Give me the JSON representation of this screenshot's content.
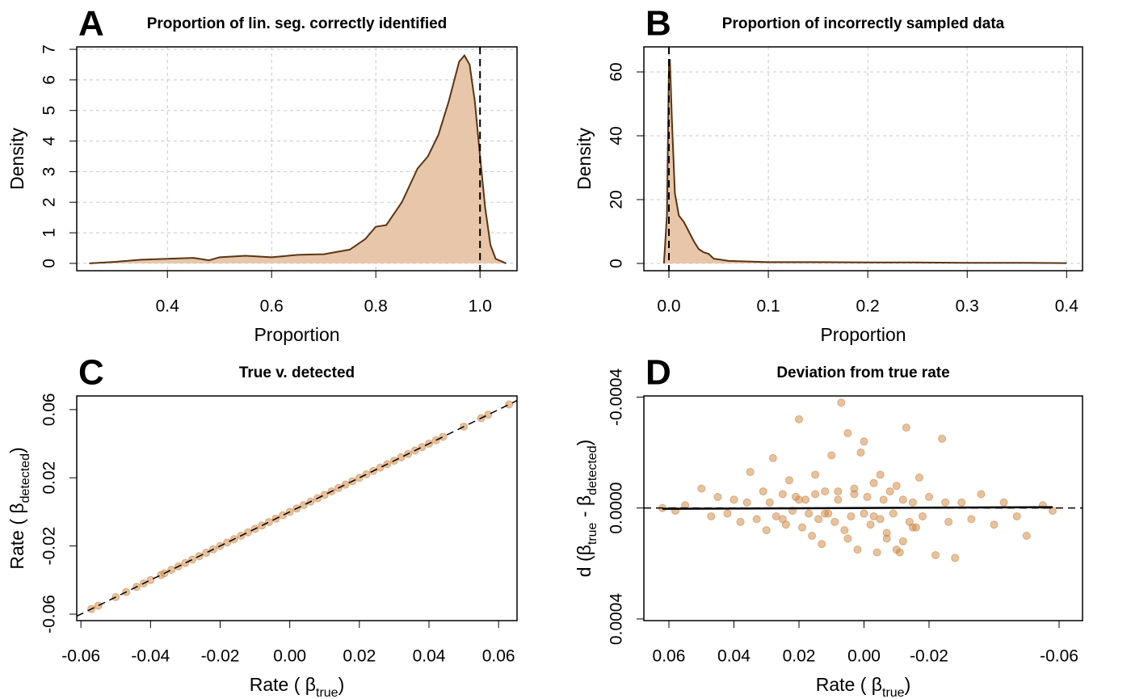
{
  "chart_data": [
    {
      "type": "area",
      "letter": "A",
      "title": "Proportion of lin. seg. correctly identified",
      "xlabel": [
        "Proportion"
      ],
      "ylabel": [
        "Density"
      ],
      "x": [
        0.25,
        0.3,
        0.35,
        0.4,
        0.45,
        0.48,
        0.5,
        0.55,
        0.6,
        0.65,
        0.7,
        0.75,
        0.78,
        0.8,
        0.82,
        0.85,
        0.88,
        0.9,
        0.92,
        0.94,
        0.96,
        0.97,
        0.98,
        0.99,
        1.0,
        1.01,
        1.02,
        1.03,
        1.05
      ],
      "y": [
        0,
        0.05,
        0.12,
        0.15,
        0.18,
        0.1,
        0.2,
        0.25,
        0.2,
        0.28,
        0.3,
        0.45,
        0.8,
        1.2,
        1.25,
        2.0,
        3.1,
        3.5,
        4.2,
        5.3,
        6.6,
        6.8,
        6.5,
        5.3,
        3.5,
        1.8,
        0.6,
        0.15,
        0
      ],
      "vline": 1.0,
      "fill": "#e8c6aa",
      "color": "#5a3413",
      "xlim": [
        0.226,
        1.071
      ],
      "ylim": [
        -0.24,
        7.08
      ],
      "xticks": [
        0.4,
        0.6,
        0.8,
        {
          "value": 1,
          "label": "1.0"
        }
      ],
      "yticks": [
        0,
        1,
        2,
        3,
        4,
        5,
        6,
        7
      ],
      "grid": true
    },
    {
      "type": "area",
      "letter": "B",
      "title": "Proportion of incorrectly sampled data",
      "xlabel": [
        "Proportion"
      ],
      "ylabel": [
        "Density"
      ],
      "x": [
        -0.005,
        -0.002,
        0,
        0.001,
        0.003,
        0.006,
        0.01,
        0.015,
        0.02,
        0.025,
        0.03,
        0.035,
        0.04,
        0.045,
        0.06,
        0.08,
        0.1,
        0.15,
        0.2,
        0.25,
        0.3,
        0.35,
        0.4
      ],
      "y": [
        0,
        15,
        62,
        64,
        45,
        22,
        15,
        13,
        10,
        7,
        4.5,
        3.5,
        3,
        1.5,
        0.8,
        0.6,
        0.4,
        0.4,
        0.3,
        0.3,
        0.2,
        0.2,
        0.1
      ],
      "vline": 0,
      "fill": "#e8c6aa",
      "color": "#5a3413",
      "xlim": [
        -0.0252,
        0.416
      ],
      "ylim": [
        -2.28,
        67.85
      ],
      "xticks": [
        {
          "value": 0,
          "label": "0.0"
        },
        0.1,
        0.2,
        0.3,
        0.4
      ],
      "yticks": [
        0,
        20,
        40,
        60
      ],
      "grid": true
    },
    {
      "type": "scatter",
      "letter": "C",
      "title": "True v. detected",
      "xlabel": [
        "Rate ( β",
        "true",
        ")"
      ],
      "ylabel": [
        "Rate ( β",
        "detected",
        ")"
      ],
      "x": [
        -0.057,
        -0.055,
        -0.05,
        -0.047,
        -0.044,
        -0.042,
        -0.04,
        -0.037,
        -0.036,
        -0.034,
        -0.032,
        -0.03,
        -0.028,
        -0.026,
        -0.024,
        -0.022,
        -0.02,
        -0.018,
        -0.016,
        -0.014,
        -0.012,
        -0.01,
        -0.008,
        -0.006,
        -0.004,
        -0.002,
        0,
        0.002,
        0.004,
        0.006,
        0.008,
        0.01,
        0.012,
        0.014,
        0.016,
        0.018,
        0.02,
        0.022,
        0.024,
        0.026,
        0.028,
        0.03,
        0.032,
        0.034,
        0.036,
        0.038,
        0.04,
        0.042,
        0.044,
        0.05,
        0.055,
        0.057,
        0.063
      ],
      "y": [
        -0.057,
        -0.055,
        -0.05,
        -0.047,
        -0.044,
        -0.042,
        -0.04,
        -0.037,
        -0.036,
        -0.034,
        -0.032,
        -0.03,
        -0.028,
        -0.026,
        -0.024,
        -0.022,
        -0.02,
        -0.018,
        -0.016,
        -0.014,
        -0.012,
        -0.01,
        -0.008,
        -0.006,
        -0.004,
        -0.002,
        0,
        0.002,
        0.004,
        0.006,
        0.008,
        0.01,
        0.012,
        0.014,
        0.016,
        0.018,
        0.02,
        0.022,
        0.024,
        0.026,
        0.028,
        0.03,
        0.032,
        0.034,
        0.036,
        0.038,
        0.04,
        0.042,
        0.044,
        0.05,
        0.055,
        0.057,
        0.063
      ],
      "identity_line": true,
      "color": "#cd853f",
      "xlim": [
        -0.0612,
        0.0653
      ],
      "ylim": [
        -0.0638,
        0.068
      ],
      "xticks": [
        -0.06,
        -0.04,
        -0.02,
        {
          "value": 0,
          "label": "0.00"
        },
        0.02,
        0.04,
        0.06
      ],
      "yticks": [
        -0.06,
        -0.02,
        0.02,
        0.06
      ],
      "grid": false
    },
    {
      "type": "scatter",
      "letter": "D",
      "title": "Deviation from true rate",
      "xlabel": [
        "Rate ( β",
        "true",
        ")"
      ],
      "ylabel": [
        "d (β",
        "true",
        " - β",
        "detected",
        ")"
      ],
      "x": [
        0.062,
        0.058,
        0.055,
        0.05,
        0.047,
        0.045,
        0.042,
        0.04,
        0.038,
        0.036,
        0.035,
        0.033,
        0.031,
        0.03,
        0.029,
        0.028,
        0.027,
        0.025,
        0.024,
        0.023,
        0.022,
        0.021,
        0.02,
        0.019,
        0.018,
        0.017,
        0.016,
        0.015,
        0.014,
        0.013,
        0.012,
        0.011,
        0.01,
        0.009,
        0.008,
        0.007,
        0.006,
        0.005,
        0.004,
        0.003,
        0.002,
        0.001,
        0,
        -0.001,
        -0.002,
        -0.003,
        -0.004,
        -0.005,
        -0.006,
        -0.007,
        -0.008,
        -0.009,
        -0.01,
        -0.011,
        -0.012,
        -0.013,
        -0.014,
        -0.015,
        -0.016,
        -0.017,
        -0.018,
        -0.02,
        -0.022,
        -0.024,
        -0.026,
        -0.028,
        -0.03,
        -0.033,
        -0.036,
        -0.04,
        -0.043,
        -0.047,
        -0.05,
        -0.055,
        -0.058,
        0.015,
        0.005,
        -0.005,
        -0.01,
        0.012,
        0,
        -0.007,
        0.02,
        -0.015,
        0.008,
        -0.003,
        0.003,
        -0.012,
        0.025,
        -0.025
      ],
      "y": [
        0,
        1e-05,
        -1e-05,
        -7e-05,
        3e-05,
        -4e-05,
        2e-05,
        -3e-05,
        5e-05,
        -2e-05,
        -0.00013,
        4e-05,
        -6e-05,
        8e-05,
        -2e-05,
        -0.00018,
        3e-05,
        -5e-05,
        6e-05,
        -0.0001,
        1e-05,
        -4e-05,
        -0.00032,
        7e-05,
        -3e-05,
        2e-05,
        0.0001,
        -0.00012,
        4e-05,
        0.00013,
        -6e-05,
        2e-05,
        -0.00019,
        5e-05,
        -3e-05,
        -0.00038,
        8e-05,
        -0.00027,
        3e-05,
        -5e-05,
        0.00015,
        -0.0002,
        2e-05,
        -4e-05,
        6e-05,
        -9e-05,
        0.00016,
        4e-05,
        -3e-05,
        0.00011,
        -6e-05,
        2e-05,
        -8e-05,
        0.00016,
        -3e-05,
        -0.00029,
        5e-05,
        -2e-05,
        7e-05,
        -0.00011,
        3e-05,
        -4e-05,
        0.00017,
        -0.00025,
        5e-05,
        0.00018,
        -2e-05,
        4e-05,
        -5e-05,
        6e-05,
        -2e-05,
        3e-05,
        0.0001,
        -1e-05,
        1e-05,
        -5e-05,
        0.00011,
        -0.00012,
        0.00015,
        2e-05,
        -0.00024,
        9e-05,
        -3e-05,
        7e-05,
        -6e-05,
        3e-05,
        -7e-05,
        0.00012,
        4e-05,
        -2e-05
      ],
      "hline": 0,
      "fit": {
        "x": [
          0.062,
          -0.058
        ],
        "y": [
          3e-06,
          -3e-06
        ]
      },
      "color": "#cd853f",
      "xlim": [
        0.0677,
        -0.0672
      ],
      "ylim": [
        0.000406,
        -0.000404
      ],
      "xticks": [
        0.06,
        0.04,
        0.02,
        {
          "value": 0,
          "label": "0.00"
        },
        -0.02,
        -0.06
      ],
      "yticks": [
        -0.0004,
        {
          "value": 0,
          "label": "0.0000"
        },
        0.0004
      ],
      "grid": false
    }
  ]
}
